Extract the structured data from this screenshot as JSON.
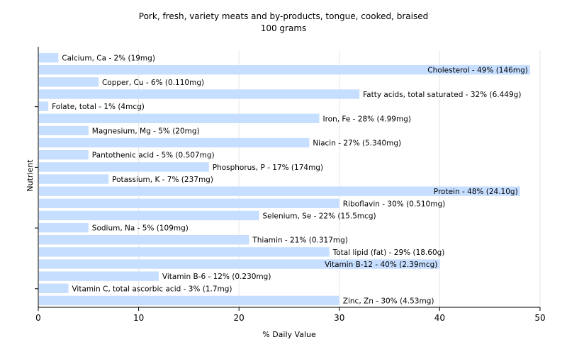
{
  "chart_data": {
    "type": "bar",
    "orientation": "horizontal",
    "title": "Pork, fresh, variety meats and by-products, tongue, cooked, braised",
    "subtitle": "100 grams",
    "xlabel": "% Daily Value",
    "ylabel": "Nutrient",
    "xlim": [
      0,
      50
    ],
    "xticks": [
      0,
      10,
      20,
      30,
      40,
      50
    ],
    "grid": true,
    "bar_color": "#c6deff",
    "grid_color": "#e6e6e6",
    "categories": [
      "Calcium, Ca - 2% (19mg)",
      "Cholesterol - 49% (146mg)",
      "Copper, Cu - 6% (0.110mg)",
      "Fatty acids, total saturated - 32% (6.449g)",
      "Folate, total - 1% (4mcg)",
      "Iron, Fe - 28% (4.99mg)",
      "Magnesium, Mg - 5% (20mg)",
      "Niacin - 27% (5.340mg)",
      "Pantothenic acid - 5% (0.507mg)",
      "Phosphorus, P - 17% (174mg)",
      "Potassium, K - 7% (237mg)",
      "Protein - 48% (24.10g)",
      "Riboflavin - 30% (0.510mg)",
      "Selenium, Se - 22% (15.5mcg)",
      "Sodium, Na - 5% (109mg)",
      "Thiamin - 21% (0.317mg)",
      "Total lipid (fat) - 29% (18.60g)",
      "Vitamin B-12 - 40% (2.39mcg)",
      "Vitamin B-6 - 12% (0.230mg)",
      "Vitamin C, total ascorbic acid - 3% (1.7mg)",
      "Zinc, Zn - 30% (4.53mg)"
    ],
    "values": [
      2,
      49,
      6,
      32,
      1,
      28,
      5,
      27,
      5,
      17,
      7,
      48,
      30,
      22,
      5,
      21,
      29,
      40,
      12,
      3,
      30
    ]
  }
}
